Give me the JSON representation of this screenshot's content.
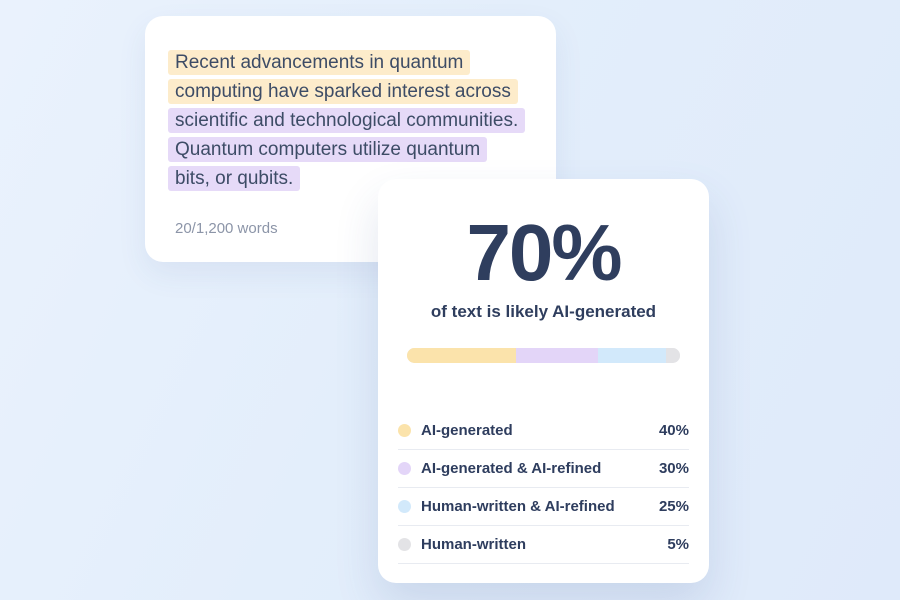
{
  "background_color": "#e3eefb",
  "editor_card": {
    "lines": [
      {
        "text": "Recent advancements in quantum",
        "highlight": "ai"
      },
      {
        "text": "computing have sparked interest across",
        "highlight": "ai"
      },
      {
        "text": "scientific and technological communities.",
        "highlight": "refined"
      },
      {
        "text": "Quantum computers utilize quantum",
        "highlight": "refined"
      },
      {
        "text": "bits, or qubits.",
        "highlight": "refined"
      }
    ],
    "highlight_colors": {
      "ai": "#fdeccb",
      "refined": "#e6daf8"
    },
    "word_count": "20/1,200 words"
  },
  "result_card": {
    "score": "70%",
    "subtitle": "of text is likely AI-generated",
    "bar_track_color": "#e4e4e7",
    "legend": [
      {
        "label": "AI-generated",
        "value": "40%",
        "pct": 40,
        "color": "#fbe3ab"
      },
      {
        "label": "AI-generated & AI-refined",
        "value": "30%",
        "pct": 30,
        "color": "#e3d5f8"
      },
      {
        "label": "Human-written & AI-refined",
        "value": "25%",
        "pct": 25,
        "color": "#d2e9fb"
      },
      {
        "label": "Human-written",
        "value": "5%",
        "pct": 5,
        "color": "#e3e3e6"
      }
    ]
  }
}
